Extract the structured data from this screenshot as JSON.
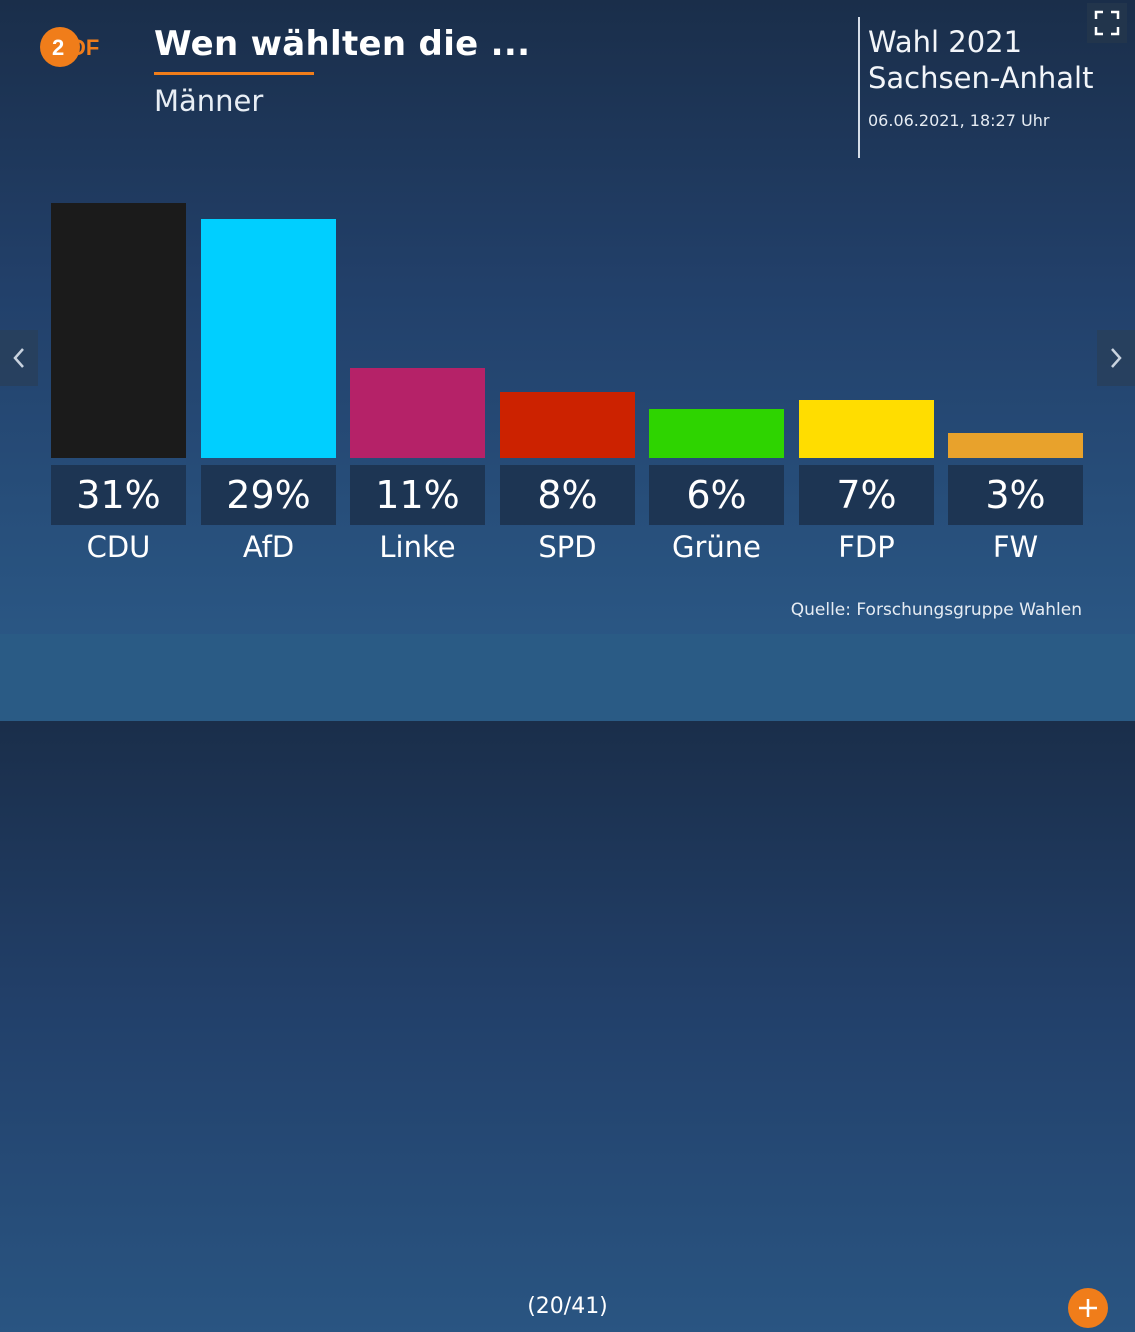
{
  "header": {
    "logo_text": "ZDF",
    "title": "Wen wählten die ...",
    "subtitle": "Männer",
    "election_line1": "Wahl 2021",
    "election_line2": "Sachsen-Anhalt",
    "datetime": "06.06.2021, 18:27 Uhr"
  },
  "colors": {
    "accent": "#f07d1a",
    "CDU": "#1b1b1b",
    "AfD": "#00cfff",
    "Linke": "#b52268",
    "SPD": "#cc2200",
    "Grüne": "#2ed400",
    "FDP": "#ffdd00",
    "FW": "#e8a22c"
  },
  "chart_data": {
    "type": "bar",
    "title": "Wen wählten die ...",
    "subtitle": "Männer",
    "categories": [
      "CDU",
      "AfD",
      "Linke",
      "SPD",
      "Grüne",
      "FDP",
      "FW"
    ],
    "values": [
      31,
      29,
      11,
      8,
      6,
      7,
      3
    ],
    "value_labels": [
      "31%",
      "29%",
      "11%",
      "8%",
      "6%",
      "7%",
      "3%"
    ],
    "unit": "%",
    "colors": [
      "#1b1b1b",
      "#00cfff",
      "#b52268",
      "#cc2200",
      "#2ed400",
      "#ffdd00",
      "#e8a22c"
    ],
    "ylim": [
      0,
      31
    ],
    "grid": false,
    "legend": "none"
  },
  "source": "Quelle: Forschungsgruppe Wahlen",
  "footer": {
    "pager": "(20/41)"
  },
  "icons": {
    "fullscreen": "fullscreen-icon",
    "prev": "chevron-left-icon",
    "next": "chevron-right-icon",
    "more": "plus-icon"
  }
}
